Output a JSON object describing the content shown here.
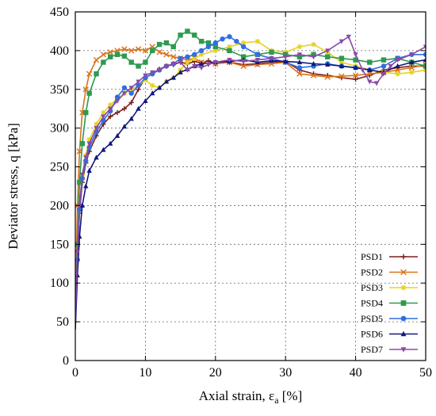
{
  "chart_data": {
    "type": "line",
    "title": "",
    "xlabel": "Axial strain, ε",
    "xlabel_sub": "a",
    "xlabel_unit": " [%]",
    "ylabel": "Deviator stress, q [kPa]",
    "xlim": [
      0,
      50
    ],
    "ylim": [
      0,
      450
    ],
    "x_ticks": [
      0,
      10,
      20,
      30,
      40,
      50
    ],
    "y_ticks": [
      0,
      50,
      100,
      150,
      200,
      250,
      300,
      350,
      400,
      450
    ],
    "grid": true,
    "legend_position": "bottom-right",
    "series": [
      {
        "name": "PSD1",
        "color": "#7a1f1f",
        "marker": "plus",
        "points": [
          [
            0,
            40
          ],
          [
            0.3,
            130
          ],
          [
            0.6,
            190
          ],
          [
            1,
            230
          ],
          [
            1.5,
            255
          ],
          [
            2,
            270
          ],
          [
            3,
            290
          ],
          [
            4,
            305
          ],
          [
            5,
            315
          ],
          [
            6,
            320
          ],
          [
            7,
            325
          ],
          [
            8,
            333
          ],
          [
            9,
            350
          ],
          [
            10,
            365
          ],
          [
            11,
            370
          ],
          [
            12,
            376
          ],
          [
            13,
            380
          ],
          [
            14,
            382
          ],
          [
            15,
            385
          ],
          [
            16,
            383
          ],
          [
            17,
            386
          ],
          [
            18,
            384
          ],
          [
            19,
            387
          ],
          [
            20,
            383
          ],
          [
            22,
            385
          ],
          [
            24,
            382
          ],
          [
            26,
            383
          ],
          [
            28,
            385
          ],
          [
            30,
            386
          ],
          [
            32,
            375
          ],
          [
            34,
            370
          ],
          [
            36,
            368
          ],
          [
            38,
            365
          ],
          [
            40,
            363
          ],
          [
            42,
            368
          ],
          [
            44,
            375
          ],
          [
            46,
            378
          ],
          [
            48,
            380
          ],
          [
            50,
            380
          ]
        ]
      },
      {
        "name": "PSD2",
        "color": "#d9731a",
        "marker": "x",
        "points": [
          [
            0,
            60
          ],
          [
            0.3,
            200
          ],
          [
            0.6,
            270
          ],
          [
            1,
            320
          ],
          [
            1.5,
            350
          ],
          [
            2,
            370
          ],
          [
            3,
            388
          ],
          [
            4,
            395
          ],
          [
            5,
            398
          ],
          [
            6,
            400
          ],
          [
            7,
            402
          ],
          [
            8,
            400
          ],
          [
            9,
            402
          ],
          [
            10,
            400
          ],
          [
            11,
            405
          ],
          [
            12,
            398
          ],
          [
            13,
            395
          ],
          [
            14,
            392
          ],
          [
            15,
            390
          ],
          [
            16,
            388
          ],
          [
            17,
            390
          ],
          [
            18,
            385
          ],
          [
            20,
            383
          ],
          [
            22,
            385
          ],
          [
            24,
            380
          ],
          [
            26,
            382
          ],
          [
            28,
            383
          ],
          [
            30,
            385
          ],
          [
            32,
            370
          ],
          [
            34,
            368
          ],
          [
            36,
            366
          ],
          [
            38,
            367
          ],
          [
            40,
            368
          ],
          [
            42,
            370
          ],
          [
            44,
            372
          ],
          [
            46,
            375
          ],
          [
            48,
            378
          ],
          [
            50,
            382
          ]
        ]
      },
      {
        "name": "PSD3",
        "color": "#e8d21c",
        "marker": "star",
        "points": [
          [
            0,
            50
          ],
          [
            0.3,
            130
          ],
          [
            0.6,
            200
          ],
          [
            1,
            240
          ],
          [
            1.5,
            265
          ],
          [
            2,
            285
          ],
          [
            3,
            305
          ],
          [
            4,
            320
          ],
          [
            5,
            330
          ],
          [
            6,
            338
          ],
          [
            7,
            345
          ],
          [
            8,
            350
          ],
          [
            9,
            355
          ],
          [
            10,
            362
          ],
          [
            11,
            355
          ],
          [
            12,
            352
          ],
          [
            13,
            360
          ],
          [
            14,
            365
          ],
          [
            15,
            375
          ],
          [
            16,
            385
          ],
          [
            17,
            390
          ],
          [
            18,
            395
          ],
          [
            20,
            400
          ],
          [
            22,
            405
          ],
          [
            24,
            410
          ],
          [
            26,
            412
          ],
          [
            28,
            400
          ],
          [
            30,
            398
          ],
          [
            32,
            405
          ],
          [
            34,
            408
          ],
          [
            36,
            398
          ],
          [
            38,
            385
          ],
          [
            40,
            380
          ],
          [
            42,
            375
          ],
          [
            44,
            372
          ],
          [
            46,
            370
          ],
          [
            48,
            372
          ],
          [
            50,
            375
          ]
        ]
      },
      {
        "name": "PSD4",
        "color": "#2e9a4e",
        "marker": "square",
        "points": [
          [
            0,
            50
          ],
          [
            0.3,
            150
          ],
          [
            0.6,
            230
          ],
          [
            1,
            280
          ],
          [
            1.5,
            320
          ],
          [
            2,
            345
          ],
          [
            3,
            370
          ],
          [
            4,
            385
          ],
          [
            5,
            392
          ],
          [
            6,
            395
          ],
          [
            7,
            393
          ],
          [
            8,
            385
          ],
          [
            9,
            380
          ],
          [
            10,
            385
          ],
          [
            11,
            400
          ],
          [
            12,
            408
          ],
          [
            13,
            410
          ],
          [
            14,
            405
          ],
          [
            15,
            420
          ],
          [
            16,
            425
          ],
          [
            17,
            420
          ],
          [
            18,
            412
          ],
          [
            19,
            410
          ],
          [
            20,
            405
          ],
          [
            22,
            400
          ],
          [
            24,
            392
          ],
          [
            26,
            395
          ],
          [
            28,
            398
          ],
          [
            30,
            395
          ],
          [
            32,
            392
          ],
          [
            34,
            395
          ],
          [
            36,
            392
          ],
          [
            38,
            390
          ],
          [
            40,
            388
          ],
          [
            42,
            385
          ],
          [
            44,
            388
          ],
          [
            46,
            390
          ],
          [
            48,
            385
          ],
          [
            50,
            380
          ]
        ]
      },
      {
        "name": "PSD5",
        "color": "#2f6fe0",
        "marker": "circle",
        "points": [
          [
            0,
            40
          ],
          [
            0.3,
            130
          ],
          [
            0.6,
            195
          ],
          [
            1,
            235
          ],
          [
            1.5,
            258
          ],
          [
            2,
            275
          ],
          [
            3,
            295
          ],
          [
            4,
            310
          ],
          [
            5,
            322
          ],
          [
            6,
            340
          ],
          [
            7,
            352
          ],
          [
            8,
            345
          ],
          [
            9,
            355
          ],
          [
            10,
            365
          ],
          [
            11,
            370
          ],
          [
            12,
            375
          ],
          [
            13,
            380
          ],
          [
            14,
            383
          ],
          [
            15,
            390
          ],
          [
            16,
            392
          ],
          [
            17,
            395
          ],
          [
            18,
            400
          ],
          [
            19,
            405
          ],
          [
            20,
            410
          ],
          [
            21,
            415
          ],
          [
            22,
            418
          ],
          [
            23,
            412
          ],
          [
            24,
            405
          ],
          [
            26,
            395
          ],
          [
            28,
            390
          ],
          [
            30,
            385
          ],
          [
            32,
            378
          ],
          [
            34,
            380
          ],
          [
            36,
            383
          ],
          [
            38,
            380
          ],
          [
            40,
            378
          ],
          [
            42,
            375
          ],
          [
            44,
            380
          ],
          [
            46,
            390
          ],
          [
            48,
            395
          ],
          [
            50,
            395
          ]
        ]
      },
      {
        "name": "PSD6",
        "color": "#12187a",
        "marker": "triangle",
        "points": [
          [
            0,
            40
          ],
          [
            0.3,
            110
          ],
          [
            0.6,
            160
          ],
          [
            1,
            200
          ],
          [
            1.5,
            225
          ],
          [
            2,
            245
          ],
          [
            3,
            262
          ],
          [
            4,
            272
          ],
          [
            5,
            280
          ],
          [
            6,
            290
          ],
          [
            7,
            302
          ],
          [
            8,
            312
          ],
          [
            9,
            325
          ],
          [
            10,
            335
          ],
          [
            11,
            345
          ],
          [
            12,
            352
          ],
          [
            13,
            360
          ],
          [
            14,
            365
          ],
          [
            15,
            372
          ],
          [
            16,
            376
          ],
          [
            17,
            380
          ],
          [
            18,
            383
          ],
          [
            20,
            385
          ],
          [
            22,
            386
          ],
          [
            24,
            388
          ],
          [
            26,
            385
          ],
          [
            28,
            387
          ],
          [
            30,
            386
          ],
          [
            32,
            385
          ],
          [
            34,
            383
          ],
          [
            36,
            382
          ],
          [
            38,
            380
          ],
          [
            40,
            378
          ],
          [
            42,
            375
          ],
          [
            44,
            372
          ],
          [
            46,
            380
          ],
          [
            48,
            385
          ],
          [
            50,
            388
          ]
        ]
      },
      {
        "name": "PSD7",
        "color": "#8b4aa8",
        "marker": "triangle-down",
        "points": [
          [
            0,
            50
          ],
          [
            0.3,
            140
          ],
          [
            0.6,
            200
          ],
          [
            1,
            240
          ],
          [
            1.5,
            262
          ],
          [
            2,
            280
          ],
          [
            3,
            300
          ],
          [
            4,
            315
          ],
          [
            5,
            325
          ],
          [
            6,
            335
          ],
          [
            7,
            345
          ],
          [
            8,
            352
          ],
          [
            9,
            360
          ],
          [
            10,
            368
          ],
          [
            11,
            372
          ],
          [
            12,
            375
          ],
          [
            13,
            380
          ],
          [
            14,
            383
          ],
          [
            15,
            385
          ],
          [
            16,
            375
          ],
          [
            17,
            380
          ],
          [
            18,
            378
          ],
          [
            19,
            382
          ],
          [
            20,
            385
          ],
          [
            22,
            388
          ],
          [
            24,
            386
          ],
          [
            26,
            388
          ],
          [
            28,
            390
          ],
          [
            30,
            392
          ],
          [
            32,
            395
          ],
          [
            34,
            392
          ],
          [
            36,
            400
          ],
          [
            38,
            412
          ],
          [
            39,
            418
          ],
          [
            40,
            395
          ],
          [
            41,
            375
          ],
          [
            42,
            360
          ],
          [
            43,
            358
          ],
          [
            44,
            370
          ],
          [
            45,
            380
          ],
          [
            46,
            388
          ],
          [
            48,
            395
          ],
          [
            50,
            405
          ]
        ]
      }
    ]
  }
}
